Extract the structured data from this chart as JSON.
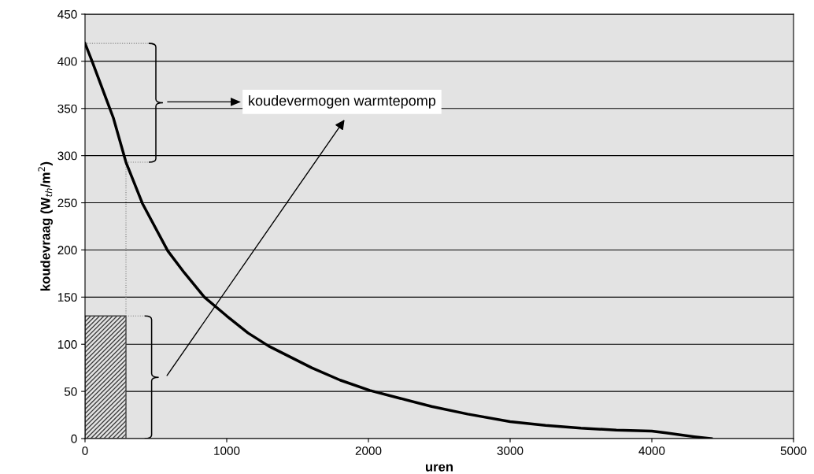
{
  "chart_data": {
    "type": "line",
    "xlabel": "uren",
    "ylabel": "koudevraag (W$_{th}$/m$^{2}$)",
    "xlim": [
      0,
      5000
    ],
    "xticks": [
      0,
      1000,
      2000,
      3000,
      4000,
      5000
    ],
    "ylim": [
      0,
      450
    ],
    "yticks": [
      0,
      50,
      100,
      150,
      200,
      250,
      300,
      350,
      400,
      450
    ],
    "grid": "y",
    "marker": "none",
    "line_style": "solid",
    "series": [
      {
        "type": "area",
        "color": "#404040",
        "x": [
          0,
          289
        ],
        "values": [
          130,
          130
        ]
      },
      {
        "color": "#000000",
        "x": [
          0,
          50,
          100,
          150,
          200,
          289,
          406,
          584,
          700,
          842,
          1000,
          1150,
          1297,
          1600,
          1800,
          2010,
          2446,
          2700,
          3000,
          3250,
          3500,
          3750,
          4000,
          4100,
          4200,
          4300,
          4420
        ],
        "values": [
          419,
          400,
          380,
          360,
          340,
          293,
          249,
          199,
          176,
          150,
          130,
          112,
          98,
          75,
          62,
          51,
          34,
          26,
          18,
          14,
          11,
          9,
          8,
          6,
          4,
          2,
          0
        ]
      }
    ],
    "annotations": [
      "koudevermogen warmtepomp"
    ]
  }
}
